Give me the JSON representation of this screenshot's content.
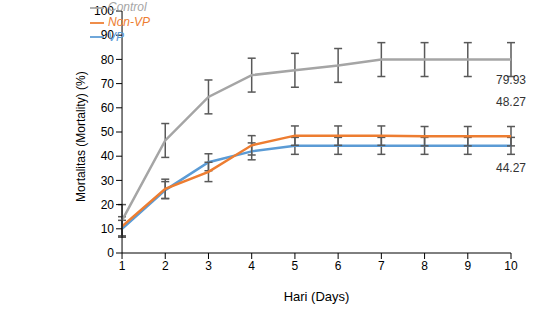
{
  "chart_data": {
    "type": "line",
    "x_label": "Hari (Days)",
    "y_label": "Mortalitas (Mortality) (%)",
    "categories": [
      1,
      2,
      3,
      4,
      5,
      6,
      7,
      8,
      9,
      10
    ],
    "ylim": [
      0,
      100
    ],
    "yticks": [
      0,
      10,
      20,
      30,
      40,
      50,
      60,
      70,
      80,
      90,
      100
    ],
    "grid": false,
    "legend": "upper left",
    "series": [
      {
        "name": "VP",
        "color": "#5b9bd5",
        "values": [
          10,
          26,
          37.5,
          42,
          44.27,
          44.27,
          44.27,
          44.27,
          44.27,
          44.27
        ],
        "errors": [
          3.5,
          3.5,
          3.5,
          3.5,
          3.5,
          3.5,
          3.5,
          3.5,
          3.5,
          3.5
        ]
      },
      {
        "name": "Non-VP",
        "color": "#ed7d31",
        "values": [
          11,
          26.5,
          33.5,
          44.5,
          48.5,
          48.5,
          48.5,
          48.27,
          48.27,
          48.27
        ],
        "errors": [
          4,
          4,
          4,
          4,
          4,
          4,
          4,
          4,
          4,
          4
        ]
      },
      {
        "name": "Control",
        "color": "#a5a5a5",
        "values": [
          13.5,
          46.5,
          64.5,
          73.5,
          75.5,
          77.5,
          79.93,
          79.93,
          79.93,
          79.93
        ],
        "errors": [
          6.5,
          7,
          7,
          7,
          7,
          7,
          7,
          7,
          7,
          7
        ]
      }
    ],
    "annotations": [
      {
        "text": "79.93",
        "series": "Control"
      },
      {
        "text": "48.27",
        "series": "Non-VP"
      },
      {
        "text": "44.27",
        "series": "VP"
      }
    ]
  }
}
